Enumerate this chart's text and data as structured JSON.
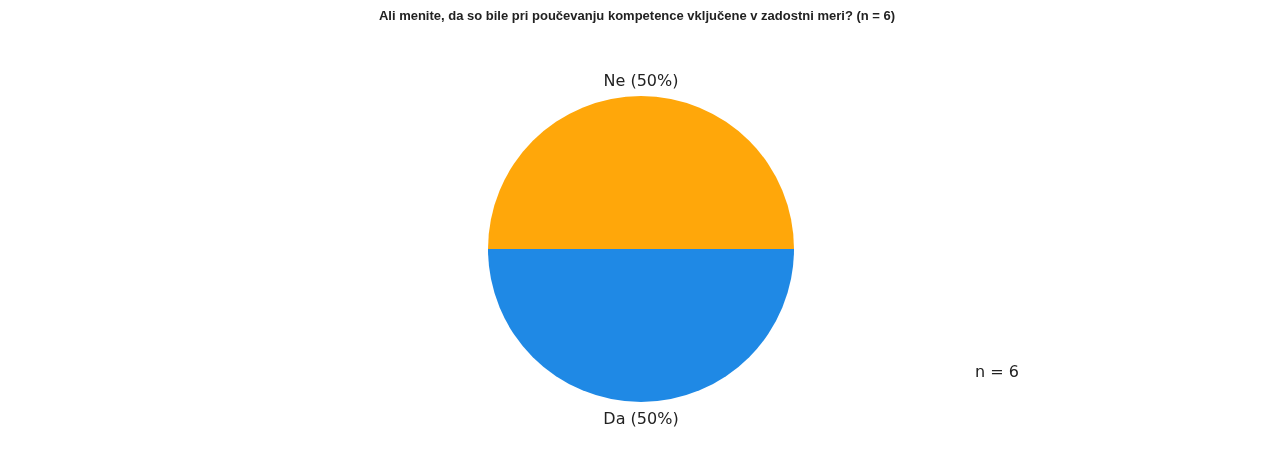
{
  "chart_data": {
    "type": "pie",
    "title": "Ali menite, da so bile pri poučevanju kompetence vključene v zadostni meri? (n = 6)",
    "categories": [
      "Ne",
      "Da"
    ],
    "values": [
      50,
      50
    ],
    "colors": [
      "#ffa70a",
      "#1f89e5"
    ],
    "value_labels": [
      "(50%)",
      "(50%)"
    ],
    "annotations": [
      "n = 6"
    ]
  }
}
